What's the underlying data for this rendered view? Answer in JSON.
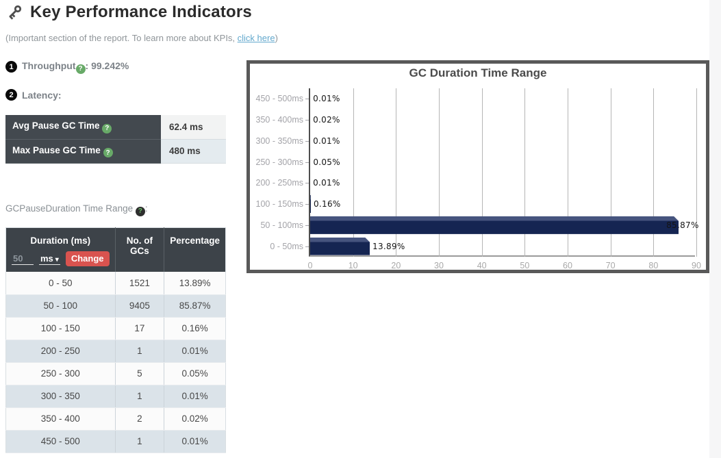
{
  "page": {
    "title": "Key Performance Indicators",
    "subtitle_prefix": "(Important section of the report. To learn more about KPIs, ",
    "subtitle_link": "click here",
    "subtitle_suffix": ")"
  },
  "kpi": {
    "throughput_badge": "1",
    "throughput_label": "Throughput",
    "throughput_value": ": 99.242%",
    "latency_badge": "2",
    "latency_label": "Latency:",
    "help_glyph": "?"
  },
  "latency_table": {
    "rows": [
      {
        "label": "Avg Pause GC Time",
        "value": "62.4 ms"
      },
      {
        "label": "Max Pause GC Time",
        "value": "480 ms"
      }
    ]
  },
  "duration_section": {
    "label": "GCPauseDuration Time Range",
    "colon": ":"
  },
  "duration_table": {
    "headers": {
      "col1": "Duration (ms)",
      "col2": "No. of GCs",
      "col3": "Percentage"
    },
    "input_value": "50",
    "unit_selected": "ms",
    "change_button": "Change",
    "rows": [
      {
        "duration": "0 - 50",
        "count": "1521",
        "pct": "13.89%"
      },
      {
        "duration": "50 - 100",
        "count": "9405",
        "pct": "85.87%"
      },
      {
        "duration": "100 - 150",
        "count": "17",
        "pct": "0.16%"
      },
      {
        "duration": "200 - 250",
        "count": "1",
        "pct": "0.01%"
      },
      {
        "duration": "250 - 300",
        "count": "5",
        "pct": "0.05%"
      },
      {
        "duration": "300 - 350",
        "count": "1",
        "pct": "0.01%"
      },
      {
        "duration": "350 - 400",
        "count": "2",
        "pct": "0.02%"
      },
      {
        "duration": "450 - 500",
        "count": "1",
        "pct": "0.01%"
      }
    ]
  },
  "chart_data": {
    "type": "bar",
    "orientation": "horizontal",
    "title": "GC Duration Time Range",
    "categories": [
      "450 - 500ms",
      "350 - 400ms",
      "300 - 350ms",
      "250 - 300ms",
      "200 - 250ms",
      "100 - 150ms",
      "50 - 100ms",
      "0 - 50ms"
    ],
    "values": [
      0.01,
      0.02,
      0.01,
      0.05,
      0.01,
      0.16,
      85.87,
      13.89
    ],
    "value_labels": [
      "0.01%",
      "0.02%",
      "0.01%",
      "0.05%",
      "0.01%",
      "0.16%",
      "85.87%",
      "13.89%"
    ],
    "x_ticks": [
      0,
      10,
      20,
      30,
      40,
      50,
      60,
      70,
      80,
      90
    ],
    "xlim": [
      0,
      90
    ],
    "grid": true,
    "legend": false,
    "bar_color": "#152552",
    "bar_bevel_color": "#46547e"
  },
  "colors": {
    "accent_red": "#d9534f",
    "help_green": "#68aa68",
    "header_dark": "#3d4349",
    "alt_row": "#dbe3e9"
  }
}
